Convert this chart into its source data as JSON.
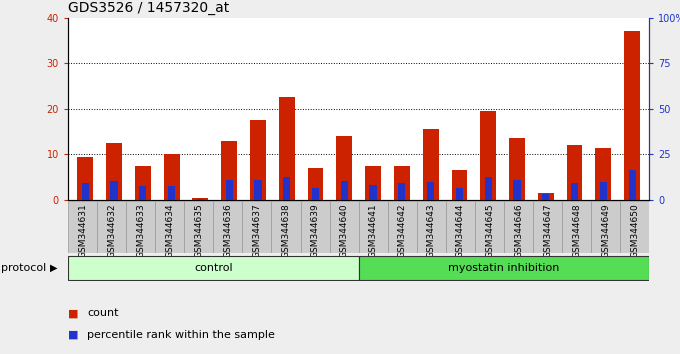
{
  "title": "GDS3526 / 1457320_at",
  "samples": [
    "GSM344631",
    "GSM344632",
    "GSM344633",
    "GSM344634",
    "GSM344635",
    "GSM344636",
    "GSM344637",
    "GSM344638",
    "GSM344639",
    "GSM344640",
    "GSM344641",
    "GSM344642",
    "GSM344643",
    "GSM344644",
    "GSM344645",
    "GSM344646",
    "GSM344647",
    "GSM344648",
    "GSM344649",
    "GSM344650"
  ],
  "counts": [
    9.5,
    12.5,
    7.5,
    10.0,
    0.5,
    13.0,
    17.5,
    22.5,
    7.0,
    14.0,
    7.5,
    7.5,
    15.5,
    6.5,
    19.5,
    13.5,
    1.5,
    12.0,
    11.5,
    37.0
  ],
  "percentile_ranks": [
    9.5,
    10.5,
    7.5,
    7.5,
    0.8,
    11.0,
    11.0,
    12.5,
    6.5,
    10.5,
    8.0,
    9.5,
    10.0,
    6.5,
    12.5,
    11.0,
    3.5,
    9.5,
    10.0,
    16.5
  ],
  "control_count": 10,
  "myostatin_count": 10,
  "control_label": "control",
  "myostatin_label": "myostatin inhibition",
  "protocol_label": "protocol",
  "legend_count": "count",
  "legend_percentile": "percentile rank within the sample",
  "ylim_left": [
    0,
    40
  ],
  "ylim_right": [
    0,
    100
  ],
  "yticks_left": [
    0,
    10,
    20,
    30,
    40
  ],
  "ytick_labels_left": [
    "0",
    "10",
    "20",
    "30",
    "40"
  ],
  "yticks_right": [
    0,
    25,
    50,
    75,
    100
  ],
  "ytick_labels_right": [
    "0",
    "25",
    "50",
    "75",
    "100%"
  ],
  "bar_color_count": "#cc2200",
  "bar_color_percentile": "#2233cc",
  "bg_color": "#eeeeee",
  "plot_bg": "#ffffff",
  "control_bg": "#ccffcc",
  "myostatin_bg": "#55dd55",
  "title_fontsize": 10,
  "tick_fontsize": 7,
  "label_fontsize": 8
}
